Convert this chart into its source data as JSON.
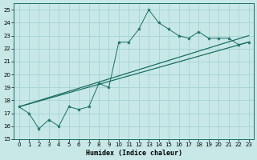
{
  "x_data": [
    0,
    1,
    2,
    3,
    4,
    5,
    6,
    7,
    8,
    9,
    10,
    11,
    12,
    13,
    14,
    15,
    16,
    17,
    18,
    19,
    20,
    21,
    22,
    23
  ],
  "y_main": [
    17.5,
    17.0,
    15.8,
    16.5,
    16.0,
    17.5,
    17.3,
    17.5,
    19.3,
    19.0,
    22.5,
    22.5,
    23.5,
    25.0,
    24.0,
    23.5,
    23.0,
    22.8,
    23.3,
    22.8,
    22.8,
    22.8,
    22.3,
    22.5
  ],
  "trend1_x": [
    0,
    23
  ],
  "trend1_y": [
    17.5,
    22.5
  ],
  "trend2_x": [
    0,
    23
  ],
  "trend2_y": [
    17.5,
    23.0
  ],
  "bg_color": "#c8e8e8",
  "grid_color": "#9ecece",
  "line_color": "#1a6e60",
  "xlabel": "Humidex (Indice chaleur)",
  "ylim": [
    15,
    25.5
  ],
  "xlim": [
    -0.5,
    23.5
  ],
  "yticks": [
    15,
    16,
    17,
    18,
    19,
    20,
    21,
    22,
    23,
    24,
    25
  ],
  "xticks": [
    0,
    1,
    2,
    3,
    4,
    5,
    6,
    7,
    8,
    9,
    10,
    11,
    12,
    13,
    14,
    15,
    16,
    17,
    18,
    19,
    20,
    21,
    22,
    23
  ],
  "xlabel_fontsize": 6,
  "tick_fontsize": 5
}
